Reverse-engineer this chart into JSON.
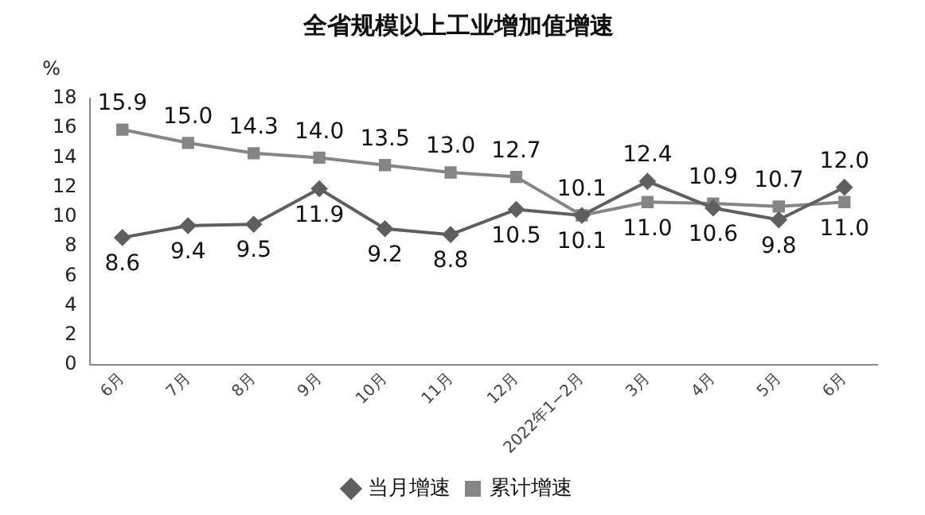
{
  "chart_data": {
    "type": "line",
    "title": "全省规模以上工业增加值增速",
    "ylabel": "%",
    "categories": [
      "6月",
      "7月",
      "8月",
      "9月",
      "10月",
      "11月",
      "12月",
      "2022年1−2月",
      "3月",
      "4月",
      "5月",
      "6月"
    ],
    "series": [
      {
        "name": "当月增速",
        "color": "#5f5f5f",
        "marker": "diamond",
        "values": [
          8.6,
          9.4,
          9.5,
          11.9,
          9.2,
          8.8,
          10.5,
          10.1,
          12.4,
          10.6,
          9.8,
          12.0
        ],
        "value_labels": [
          "8.6",
          "9.4",
          "9.5",
          "11.9",
          "9.2",
          "8.8",
          "10.5",
          "10.1",
          "12.4",
          "10.6",
          "9.8",
          "12.0"
        ]
      },
      {
        "name": "累计增速",
        "color": "#858585",
        "marker": "square",
        "values": [
          15.9,
          15.0,
          14.3,
          14.0,
          13.5,
          13.0,
          12.7,
          10.1,
          11.0,
          10.9,
          10.7,
          11.0
        ],
        "value_labels": [
          "15.9",
          "15.0",
          "14.3",
          "14.0",
          "13.5",
          "13.0",
          "12.7",
          "10.1",
          "11.0",
          "10.9",
          "10.7",
          "11.0"
        ]
      }
    ],
    "ylim": [
      0,
      18
    ],
    "yticks": [
      0,
      2,
      4,
      6,
      8,
      10,
      12,
      14,
      16,
      18
    ],
    "grid": false,
    "legend": "bottom",
    "line_style": "solid"
  }
}
